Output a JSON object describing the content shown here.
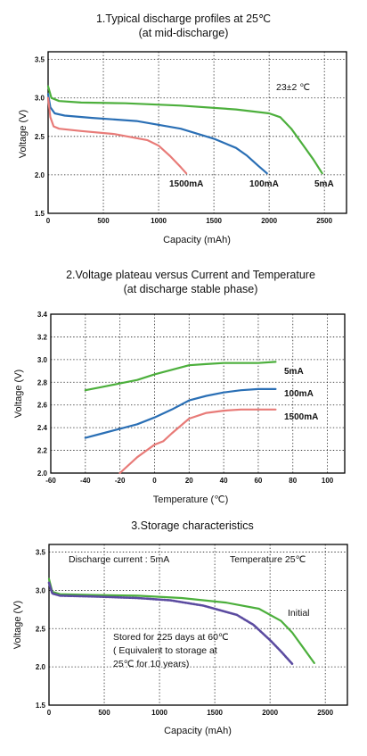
{
  "chart_data": [
    {
      "type": "line",
      "title": "1.Typical discharge profiles at 25℃",
      "subtitle": "(at mid-discharge)",
      "xlabel": "Capacity (mAh)",
      "ylabel": "Voltage (V)",
      "xlim": [
        0,
        2700
      ],
      "ylim": [
        1.5,
        3.6
      ],
      "xticks": [
        0,
        500,
        1000,
        1500,
        2000,
        2500
      ],
      "xtick_labels": [
        "0",
        "500",
        "1000",
        "1500",
        "2000",
        "2500"
      ],
      "yticks": [
        1.5,
        2.0,
        2.5,
        3.0,
        3.5
      ],
      "ytick_labels": [
        "1.5",
        "2.0",
        "2.5",
        "3.0",
        "3.5"
      ],
      "grid": true,
      "annotations": [
        {
          "text": "23±2 ℃"
        }
      ],
      "series": [
        {
          "name": "5mA",
          "color": "#4caf3c",
          "x": [
            0,
            30,
            100,
            300,
            700,
            1200,
            1700,
            2000,
            2100,
            2200,
            2300,
            2400,
            2480
          ],
          "y": [
            3.15,
            3.0,
            2.96,
            2.94,
            2.93,
            2.9,
            2.85,
            2.8,
            2.75,
            2.6,
            2.4,
            2.2,
            2.02
          ]
        },
        {
          "name": "100mA",
          "color": "#2a6fb5",
          "x": [
            0,
            20,
            60,
            150,
            400,
            800,
            1200,
            1500,
            1700,
            1800,
            1900,
            1980
          ],
          "y": [
            3.05,
            2.88,
            2.8,
            2.77,
            2.74,
            2.7,
            2.6,
            2.47,
            2.35,
            2.25,
            2.12,
            2.02
          ]
        },
        {
          "name": "1500mA",
          "color": "#e87b78",
          "x": [
            0,
            20,
            50,
            100,
            300,
            600,
            900,
            1000,
            1100,
            1200,
            1250
          ],
          "y": [
            3.0,
            2.75,
            2.63,
            2.6,
            2.57,
            2.53,
            2.45,
            2.38,
            2.25,
            2.1,
            2.02
          ]
        }
      ]
    },
    {
      "type": "line",
      "title": "2.Voltage plateau versus Current and Temperature",
      "subtitle": "(at discharge stable phase)",
      "xlabel": "Temperature (℃)",
      "ylabel": "Voltage (V)",
      "xlim": [
        -60,
        110
      ],
      "ylim": [
        2.0,
        3.4
      ],
      "xticks": [
        -60,
        -40,
        -20,
        0,
        20,
        40,
        60,
        80,
        100
      ],
      "xtick_labels": [
        "-60",
        "-40",
        "-20",
        "0",
        "20",
        "40",
        "60",
        "80",
        "100"
      ],
      "yticks": [
        2.0,
        2.2,
        2.4,
        2.6,
        2.8,
        3.0,
        3.2,
        3.4
      ],
      "ytick_labels": [
        "2.0",
        "2.2",
        "2.4",
        "2.6",
        "2.8",
        "3.0",
        "3.2",
        "3.4"
      ],
      "grid": true,
      "series": [
        {
          "name": "5mA",
          "color": "#4caf3c",
          "x": [
            -40,
            -30,
            -20,
            -10,
            0,
            10,
            20,
            30,
            40,
            50,
            60,
            70
          ],
          "y": [
            2.73,
            2.76,
            2.79,
            2.82,
            2.87,
            2.91,
            2.95,
            2.96,
            2.97,
            2.97,
            2.97,
            2.98
          ]
        },
        {
          "name": "100mA",
          "color": "#2a6fb5",
          "x": [
            -40,
            -30,
            -20,
            -10,
            0,
            10,
            20,
            30,
            40,
            50,
            60,
            70
          ],
          "y": [
            2.31,
            2.35,
            2.39,
            2.43,
            2.49,
            2.56,
            2.64,
            2.68,
            2.71,
            2.73,
            2.74,
            2.74
          ]
        },
        {
          "name": "1500mA",
          "color": "#e87b78",
          "x": [
            -20,
            -10,
            0,
            5,
            10,
            20,
            30,
            40,
            50,
            60,
            70
          ],
          "y": [
            2.0,
            2.14,
            2.25,
            2.28,
            2.35,
            2.48,
            2.53,
            2.55,
            2.56,
            2.56,
            2.56
          ]
        }
      ]
    },
    {
      "type": "line",
      "title": "3.Storage characteristics",
      "xlabel": "Capacity (mAh)",
      "ylabel": "Voltage (V)",
      "xlim": [
        0,
        2700
      ],
      "ylim": [
        1.5,
        3.6
      ],
      "xticks": [
        0,
        500,
        1000,
        1500,
        2000,
        2500
      ],
      "xtick_labels": [
        "0",
        "500",
        "1000",
        "1500",
        "2000",
        "2500"
      ],
      "yticks": [
        1.5,
        2.0,
        2.5,
        3.0,
        3.5
      ],
      "ytick_labels": [
        "1.5",
        "2.0",
        "2.5",
        "3.0",
        "3.5"
      ],
      "grid": true,
      "annotations": [
        {
          "text": "Discharge current : 5mA"
        },
        {
          "text": "Temperature   25℃"
        },
        {
          "text": "Stored for 225 days at 60℃"
        },
        {
          "text": "( Equivalent to storage at"
        },
        {
          "text": "25℃ for 10 years)"
        }
      ],
      "series": [
        {
          "name": "Initial",
          "color": "#4caf3c",
          "x": [
            0,
            30,
            100,
            400,
            800,
            1200,
            1600,
            1900,
            2100,
            2200,
            2300,
            2400
          ],
          "y": [
            3.15,
            2.98,
            2.95,
            2.94,
            2.93,
            2.9,
            2.84,
            2.76,
            2.6,
            2.45,
            2.25,
            2.05
          ]
        },
        {
          "color": "#5b4ba0",
          "x": [
            0,
            30,
            100,
            400,
            800,
            1100,
            1400,
            1700,
            1850,
            2000,
            2100,
            2200
          ],
          "y": [
            3.1,
            2.96,
            2.93,
            2.92,
            2.9,
            2.87,
            2.8,
            2.68,
            2.55,
            2.35,
            2.2,
            2.04
          ]
        }
      ]
    }
  ]
}
